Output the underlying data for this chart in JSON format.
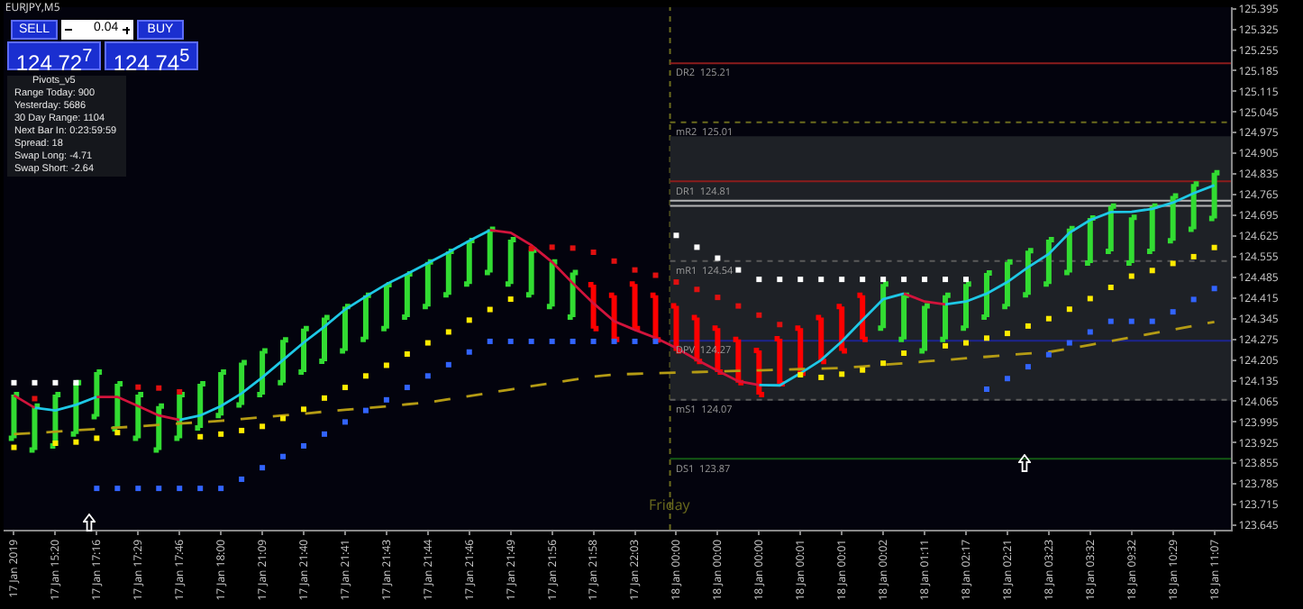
{
  "chart_data": {
    "type": "candlestick",
    "title": "EURJPY,M5",
    "categories": [
      "17 Jan 2019",
      null,
      "17 Jan 15:20",
      null,
      "17 Jan 17:16",
      null,
      "17 Jan 17:29",
      null,
      "17 Jan 17:46",
      null,
      "17 Jan 18:00",
      null,
      "17 Jan 21:09",
      null,
      "17 Jan 21:40",
      null,
      "17 Jan 21:41",
      null,
      "17 Jan 21:43",
      null,
      "17 Jan 21:44",
      null,
      "17 Jan 21:46",
      null,
      "17 Jan 21:49",
      null,
      "17 Jan 21:56",
      null,
      "17 Jan 21:58",
      null,
      "17 Jan 22:03",
      null,
      "18 Jan 00:00",
      null,
      "18 Jan 00:00",
      null,
      "18 Jan 00:00",
      null,
      "18 Jan 00:01",
      null,
      "18 Jan 00:01",
      null,
      "18 Jan 00:02",
      null,
      "18 Jan 01:11",
      null,
      "18 Jan 02:17",
      null,
      "18 Jan 02:21",
      null,
      "18 Jan 03:23",
      null,
      "18 Jan 03:32",
      null,
      "18 Jan 09:32",
      null,
      "18 Jan 10:29",
      null,
      "18 Jan 11:07"
    ],
    "ohlc": [
      [
        123.94,
        124.088,
        123.94,
        124.088
      ],
      [
        123.9,
        124.049,
        123.9,
        124.049
      ],
      [
        123.914,
        124.088,
        123.914,
        124.088
      ],
      [
        123.954,
        124.128,
        123.954,
        124.128
      ],
      [
        124.013,
        124.164,
        124.013,
        124.164
      ],
      [
        123.972,
        124.124,
        123.972,
        124.124
      ],
      [
        123.94,
        124.088,
        123.94,
        124.088
      ],
      [
        123.9,
        124.049,
        123.9,
        124.049
      ],
      [
        123.94,
        124.088,
        123.94,
        124.088
      ],
      [
        123.975,
        124.124,
        123.975,
        124.124
      ],
      [
        124.017,
        124.164,
        124.017,
        124.164
      ],
      [
        124.053,
        124.196,
        124.053,
        124.196
      ],
      [
        124.088,
        124.236,
        124.088,
        124.236
      ],
      [
        124.128,
        124.273,
        124.128,
        124.273
      ],
      [
        124.164,
        124.311,
        124.164,
        124.311
      ],
      [
        124.201,
        124.349,
        124.201,
        124.349
      ],
      [
        124.236,
        124.386,
        124.236,
        124.386
      ],
      [
        124.275,
        124.424,
        124.275,
        124.424
      ],
      [
        124.311,
        124.46,
        124.311,
        124.46
      ],
      [
        124.35,
        124.497,
        124.35,
        124.497
      ],
      [
        124.386,
        124.537,
        124.386,
        124.537
      ],
      [
        124.426,
        124.573,
        124.426,
        124.573
      ],
      [
        124.462,
        124.61,
        124.462,
        124.61
      ],
      [
        124.501,
        124.648,
        124.501,
        124.648
      ],
      [
        124.462,
        124.613,
        124.462,
        124.613
      ],
      [
        124.426,
        124.577,
        124.426,
        124.577
      ],
      [
        124.386,
        124.537,
        124.386,
        124.537
      ],
      [
        124.35,
        124.501,
        124.35,
        124.501
      ],
      [
        124.46,
        124.46,
        124.311,
        124.311
      ],
      [
        124.424,
        124.424,
        124.275,
        124.275
      ],
      [
        124.462,
        124.462,
        124.311,
        124.311
      ],
      [
        124.424,
        124.424,
        124.273,
        124.273
      ],
      [
        124.388,
        124.388,
        124.236,
        124.236
      ],
      [
        124.349,
        124.349,
        124.2,
        124.2
      ],
      [
        124.313,
        124.313,
        124.164,
        124.164
      ],
      [
        124.275,
        124.275,
        124.128,
        124.128
      ],
      [
        124.237,
        124.237,
        124.088,
        124.088
      ],
      [
        124.277,
        124.277,
        124.124,
        124.124
      ],
      [
        124.313,
        124.313,
        124.16,
        124.16
      ],
      [
        124.349,
        124.349,
        124.2,
        124.2
      ],
      [
        124.386,
        124.386,
        124.236,
        124.236
      ],
      [
        124.424,
        124.424,
        124.275,
        124.275
      ],
      [
        124.313,
        124.462,
        124.313,
        124.462
      ],
      [
        124.275,
        124.424,
        124.275,
        124.424
      ],
      [
        124.236,
        124.388,
        124.236,
        124.388
      ],
      [
        124.275,
        124.424,
        124.275,
        124.424
      ],
      [
        124.313,
        124.462,
        124.313,
        124.462
      ],
      [
        124.35,
        124.5,
        124.35,
        124.5
      ],
      [
        124.386,
        124.537,
        124.386,
        124.537
      ],
      [
        124.426,
        124.575,
        124.426,
        124.575
      ],
      [
        124.462,
        124.613,
        124.462,
        124.613
      ],
      [
        124.501,
        124.65,
        124.501,
        124.65
      ],
      [
        124.533,
        124.686,
        124.533,
        124.686
      ],
      [
        124.573,
        124.726,
        124.573,
        124.726
      ],
      [
        124.533,
        124.688,
        124.533,
        124.688
      ],
      [
        124.573,
        124.726,
        124.573,
        124.726
      ],
      [
        124.609,
        124.761,
        124.609,
        124.761
      ],
      [
        124.648,
        124.801,
        124.648,
        124.801
      ],
      [
        124.684,
        124.839,
        124.684,
        124.839
      ]
    ],
    "colors": [
      "#32dc32",
      "#32dc32",
      "#32dc32",
      "#32dc32",
      "#32dc32",
      "#32dc32",
      "#32dc32",
      "#32dc32",
      "#32dc32",
      "#32dc32",
      "#32dc32",
      "#32dc32",
      "#32dc32",
      "#32dc32",
      "#32dc32",
      "#32dc32",
      "#32dc32",
      "#32dc32",
      "#32dc32",
      "#32dc32",
      "#32dc32",
      "#32dc32",
      "#32dc32",
      "#32dc32",
      "#32dc32",
      "#32dc32",
      "#32dc32",
      "#32dc32",
      "#ff0000",
      "#ff0000",
      "#ff0000",
      "#ff0000",
      "#ff0000",
      "#ff0000",
      "#ff0000",
      "#ff0000",
      "#ff0000",
      "#ff0000",
      "#ff0000",
      "#ff0000",
      "#ff0000",
      "#ff0000",
      "#32dc32",
      "#32dc32",
      "#32dc32",
      "#32dc32",
      "#32dc32",
      "#32dc32",
      "#32dc32",
      "#32dc32",
      "#32dc32",
      "#32dc32",
      "#32dc32",
      "#32dc32",
      "#32dc32",
      "#32dc32",
      "#32dc32",
      "#32dc32",
      "#32dc32"
    ],
    "series": [
      {
        "type": "line",
        "color": "#b49b14",
        "line_style": "dashed",
        "values": [
          123.954,
          123.958,
          123.962,
          123.967,
          123.971,
          123.976,
          123.98,
          123.985,
          123.99,
          123.994,
          123.999,
          124.005,
          124.011,
          124.017,
          124.023,
          124.03,
          124.036,
          124.042,
          124.048,
          124.055,
          124.061,
          124.072,
          124.083,
          124.094,
          124.105,
          124.116,
          124.127,
          124.138,
          124.149,
          124.156,
          124.158,
          124.16,
          124.162,
          124.164,
          124.166,
          124.168,
          124.17,
          124.172,
          124.174,
          124.176,
          124.178,
          124.183,
          124.189,
          124.194,
          124.2,
          124.205,
          124.211,
          124.216,
          124.222,
          124.227,
          124.232,
          124.244,
          124.256,
          124.269,
          124.282,
          124.295,
          124.308,
          124.321,
          124.334
        ]
      },
      {
        "type": "line",
        "color": "#1ec8e6",
        "values": [
          null,
          124.043,
          124.034,
          124.053,
          124.08,
          null,
          null,
          null,
          124.002,
          124.017,
          124.049,
          124.092,
          124.146,
          124.205,
          124.264,
          124.318,
          124.376,
          124.42,
          124.462,
          124.497,
          124.533,
          124.57,
          124.609,
          124.645,
          null,
          null,
          null,
          null,
          null,
          null,
          null,
          null,
          null,
          null,
          null,
          null,
          124.12,
          124.119,
          124.16,
          124.205,
          124.268,
          124.34,
          124.411,
          124.43,
          null,
          124.393,
          124.403,
          124.43,
          124.469,
          124.519,
          124.564,
          124.636,
          124.679,
          124.706,
          124.707,
          124.717,
          124.738,
          124.77,
          124.797
        ]
      },
      {
        "type": "line",
        "color": "#d2143c",
        "values": [
          124.085,
          124.043,
          null,
          null,
          124.08,
          124.08,
          124.049,
          124.017,
          124.002,
          null,
          null,
          null,
          null,
          null,
          null,
          null,
          null,
          null,
          null,
          null,
          null,
          null,
          null,
          124.645,
          124.636,
          124.594,
          124.537,
          124.465,
          124.397,
          124.336,
          124.307,
          124.28,
          124.246,
          124.205,
          124.169,
          124.133,
          124.12,
          null,
          null,
          null,
          null,
          null,
          null,
          124.43,
          124.403,
          124.393,
          null,
          null,
          null,
          null,
          null,
          null,
          null,
          null,
          null,
          null,
          null,
          null,
          null
        ]
      },
      {
        "type": "scatter",
        "color": "#ffeb00",
        "marker": "square",
        "values": [
          123.909,
          null,
          123.923,
          123.927,
          123.94,
          123.959,
          null,
          null,
          null,
          123.945,
          123.954,
          123.966,
          123.98,
          124.007,
          124.038,
          124.076,
          124.112,
          124.151,
          124.187,
          124.225,
          124.263,
          124.3,
          124.34,
          124.376,
          124.411,
          null,
          null,
          null,
          null,
          null,
          null,
          null,
          null,
          null,
          null,
          null,
          null,
          null,
          124.155,
          124.146,
          124.157,
          124.171,
          124.194,
          124.228,
          null,
          124.253,
          124.263,
          124.279,
          124.295,
          124.32,
          124.345,
          124.377,
          124.413,
          124.451,
          124.489,
          124.508,
          124.532,
          124.555,
          124.586
        ]
      },
      {
        "type": "scatter",
        "color": "#3264ff",
        "marker": "square",
        "values": [
          null,
          null,
          null,
          null,
          123.77,
          123.77,
          123.77,
          123.77,
          123.77,
          123.77,
          123.77,
          123.801,
          123.84,
          123.878,
          123.914,
          123.954,
          123.995,
          124.034,
          124.07,
          124.112,
          124.151,
          124.189,
          124.232,
          124.268,
          124.268,
          124.268,
          124.268,
          124.268,
          124.268,
          124.268,
          124.268,
          124.268,
          null,
          null,
          null,
          null,
          null,
          null,
          null,
          null,
          null,
          null,
          null,
          null,
          null,
          null,
          null,
          124.106,
          124.142,
          124.182,
          124.223,
          124.263,
          124.3,
          124.336,
          124.336,
          124.336,
          124.368,
          124.41,
          124.447
        ]
      },
      {
        "type": "scatter",
        "color": "#ffffff",
        "marker": "square",
        "values": [
          124.128,
          124.128,
          124.128,
          124.128,
          null,
          null,
          null,
          null,
          null,
          null,
          null,
          null,
          null,
          null,
          null,
          null,
          null,
          null,
          null,
          null,
          null,
          null,
          null,
          null,
          null,
          null,
          null,
          null,
          null,
          null,
          null,
          null,
          124.627,
          124.587,
          124.55,
          124.51,
          124.478,
          124.478,
          124.478,
          124.478,
          124.478,
          124.478,
          124.478,
          124.478,
          124.478,
          124.478,
          124.478,
          null,
          null,
          null,
          null,
          null,
          null,
          null,
          null,
          null,
          null,
          null,
          null
        ]
      },
      {
        "type": "scatter",
        "color": "#e01010",
        "marker": "square",
        "values": [
          null,
          124.074,
          null,
          null,
          null,
          null,
          124.113,
          124.11,
          124.097,
          null,
          null,
          null,
          null,
          null,
          null,
          null,
          null,
          null,
          null,
          null,
          null,
          null,
          null,
          null,
          null,
          124.582,
          124.587,
          124.584,
          124.57,
          124.54,
          124.51,
          124.492,
          124.469,
          124.444,
          124.417,
          124.388,
          124.357,
          124.325,
          null,
          null,
          null,
          null,
          null,
          null,
          null,
          null,
          null,
          null,
          null,
          null,
          null,
          null,
          null,
          null,
          null,
          null,
          null,
          null,
          null
        ]
      }
    ],
    "ylim": [
      123.63,
      125.4
    ],
    "yticks": [
      123.645,
      123.715,
      123.785,
      123.855,
      123.925,
      123.995,
      124.065,
      124.135,
      124.205,
      124.275,
      124.345,
      124.415,
      124.485,
      124.555,
      124.625,
      124.695,
      124.765,
      124.835,
      124.905,
      124.975,
      125.045,
      125.115,
      125.185,
      125.255,
      125.325,
      125.395
    ],
    "ref_lines": [
      {
        "axis": "x",
        "value": "18 Jan 00:00",
        "label": "Friday",
        "color": "#6b6b1e",
        "line_style": "dotted"
      },
      {
        "axis": "y",
        "value": 125.21,
        "label": "DR2  125.21",
        "color": "#8c1c1c",
        "line_style": "solid"
      },
      {
        "axis": "y",
        "value": 125.01,
        "label": "mR2  125.01",
        "color": "#6b6b1e",
        "line_style": "dotted"
      },
      {
        "axis": "y",
        "value": 124.81,
        "label": "DR1  124.81",
        "color": "#8c1c1c",
        "line_style": "solid"
      },
      {
        "axis": "y",
        "value": 124.54,
        "label": "mR1  124.54",
        "color": "#5a5a5a",
        "line_style": "dotted"
      },
      {
        "axis": "y",
        "value": 124.27,
        "label": "DPV  124.27",
        "color": "#1c2490",
        "line_style": "solid"
      },
      {
        "axis": "y",
        "value": 124.07,
        "label": "mS1  124.07",
        "color": "#5a5a5a",
        "line_style": "dotted"
      },
      {
        "axis": "y",
        "value": 123.87,
        "label": "DS1  123.87",
        "color": "#145a14",
        "line_style": "solid"
      },
      {
        "axis": "y",
        "value": 124.745,
        "color": "#b4b4b4",
        "line_style": "solid"
      },
      {
        "axis": "y",
        "value": 124.727,
        "color": "#b4b4b4",
        "line_style": "solid"
      }
    ],
    "bands": [
      {
        "axis": "y",
        "from": 124.067,
        "to": 124.963,
        "color": "#1e2126"
      }
    ],
    "grid": false,
    "annotations": [
      "SELL",
      "0.04",
      "BUY",
      "124 72$^{7}$",
      "124 74$^{5}$",
      "Pivots_v5",
      "Range Today:  900",
      "Yesterday:  5686",
      "30 Day Range:  1104",
      "Next Bar In:  0:23:59:59",
      "Spread:  18",
      "Swap Long:  -4.71",
      "Swap Short:  -2.64"
    ]
  }
}
